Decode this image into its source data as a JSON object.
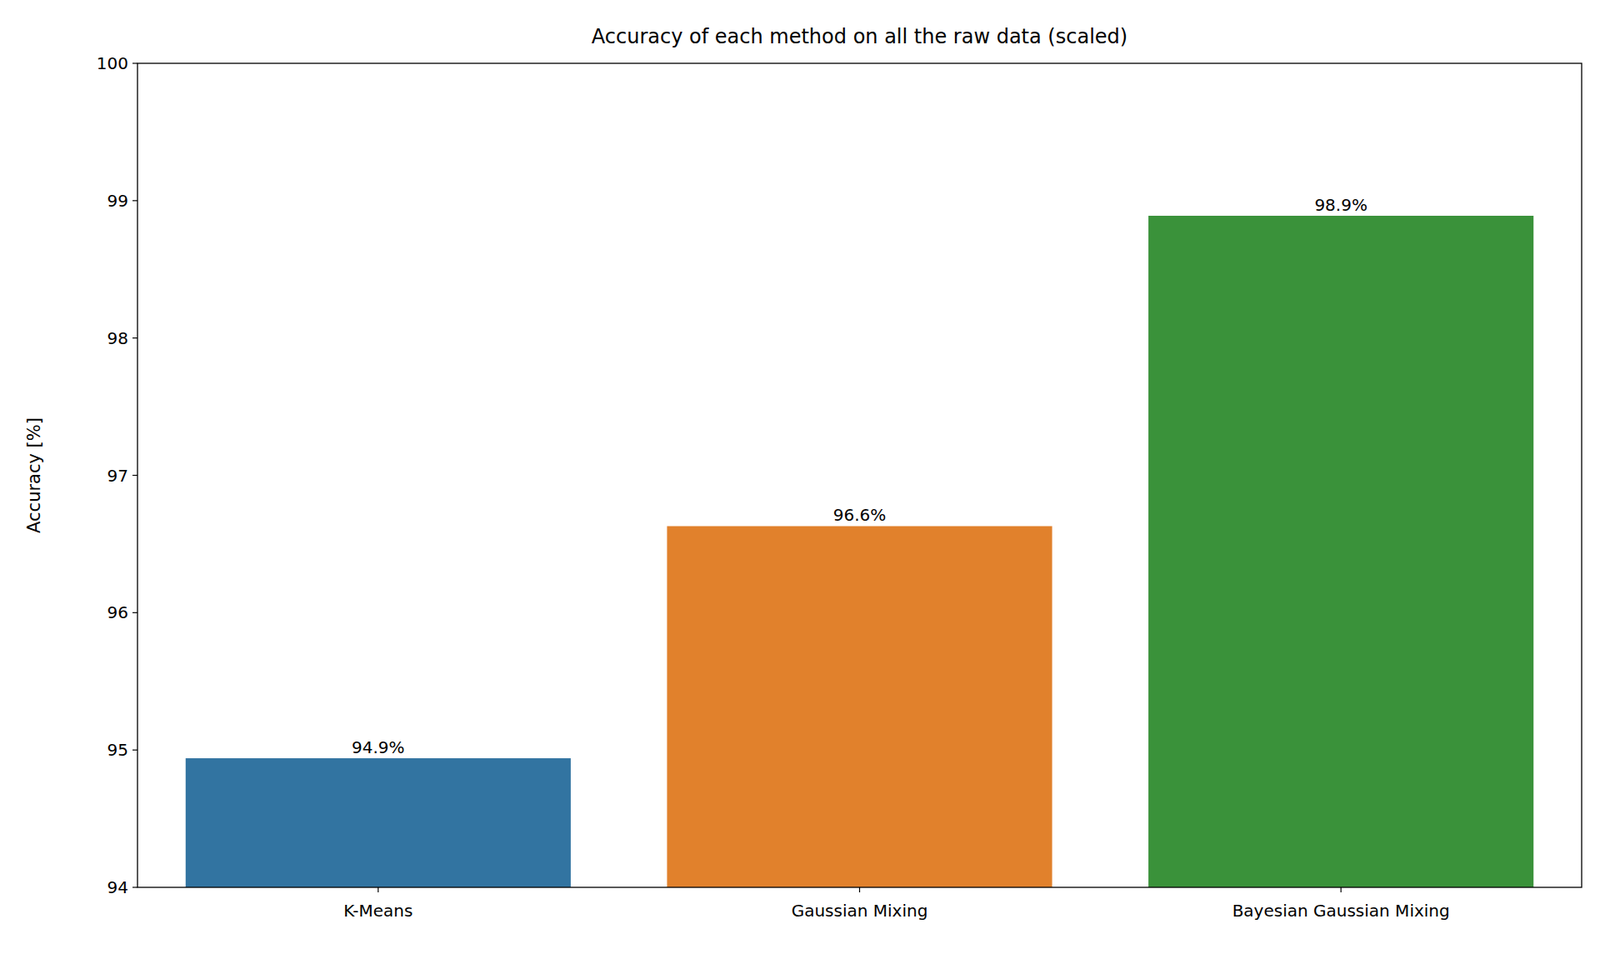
{
  "chart_data": {
    "type": "bar",
    "title": "Accuracy of each method on all the raw data (scaled)",
    "y_label": "Accuracy [%]",
    "categories": [
      "K-Means",
      "Gaussian Mixing",
      "Bayesian Gaussian Mixing"
    ],
    "values": [
      94.94,
      96.63,
      98.89
    ],
    "value_labels": [
      "94.9%",
      "96.6%",
      "98.9%"
    ],
    "colors": [
      "#3274a1",
      "#e1812c",
      "#3a923a"
    ],
    "ylim": [
      94,
      100
    ],
    "yticks": [
      94,
      95,
      96,
      97,
      98,
      99,
      100
    ],
    "grid": false,
    "data_labels": true
  }
}
